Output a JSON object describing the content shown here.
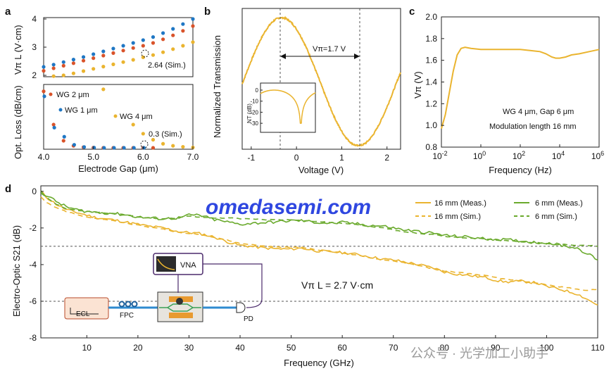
{
  "watermark": "omedasemi.com",
  "watermark2": "公众号 · 光学加工小助手",
  "colors": {
    "blue": "#1f77c4",
    "red": "#d9532a",
    "gold": "#eab42f",
    "green": "#6aaa2d",
    "vna": "#4b2a6b"
  },
  "panels": {
    "a": {
      "label": "a",
      "xlabel": "Electrode Gap (μm)",
      "ylabel_top": "Vπ L (V·cm)",
      "ylabel_bottom": "Opt. Loss (dB/cm)"
    },
    "b": {
      "label": "b",
      "xlabel": "Voltage (V)",
      "ylabel": "Normalized Transmission",
      "inset_ylabel": "NT (dB)"
    },
    "c": {
      "label": "c",
      "xlabel": "Frequency (Hz)",
      "ylabel": "Vπ (V)",
      "note1": "WG 4 μm, Gap 6 μm",
      "note2": "Modulation length 16 mm"
    },
    "d": {
      "label": "d",
      "xlabel": "Frequency (GHz)",
      "ylabel": "Electro-Optic S21 (dB)",
      "vpi_l": "Vπ L = 2.7 V·cm"
    }
  },
  "chart_data": [
    {
      "panel": "a-top",
      "type": "scatter",
      "ylim": [
        2,
        4
      ],
      "xlim": [
        4,
        7
      ],
      "yticks": [
        "2",
        "3",
        "4"
      ],
      "xticks": [
        "4.0",
        "5.0",
        "6.0",
        "7.0"
      ],
      "x": [
        4.0,
        4.2,
        4.4,
        4.6,
        4.8,
        5.0,
        5.2,
        5.4,
        5.6,
        5.8,
        6.0,
        6.2,
        6.4,
        6.6,
        6.8,
        7.0
      ],
      "series": [
        {
          "label": "WG 1 μm",
          "values": [
            2.3,
            2.38,
            2.47,
            2.56,
            2.65,
            2.75,
            2.85,
            2.95,
            3.05,
            3.15,
            3.25,
            3.36,
            3.5,
            3.65,
            3.82,
            4.0
          ]
        },
        {
          "label": "WG 2 μm",
          "values": [
            2.16,
            2.25,
            2.34,
            2.43,
            2.52,
            2.61,
            2.7,
            2.79,
            2.88,
            2.97,
            3.05,
            3.15,
            3.28,
            3.42,
            3.58,
            3.75
          ]
        },
        {
          "label": "WG 4 μm",
          "values": [
            1.95,
            1.97,
            2.0,
            2.07,
            2.15,
            2.23,
            2.31,
            2.39,
            2.47,
            2.55,
            2.64,
            2.72,
            2.82,
            2.93,
            3.05,
            3.18
          ]
        }
      ],
      "annotation": "2.64 (Sim.)"
    },
    {
      "panel": "a-bottom",
      "type": "scatter",
      "ylim": [
        0,
        3
      ],
      "xlim": [
        4,
        7
      ],
      "xticks": [
        "4.0",
        "5.0",
        "6.0",
        "7.0"
      ],
      "series": [
        {
          "label": "WG 2 μm",
          "points": [
            [
              4.0,
              2.8
            ],
            [
              4.2,
              1.15
            ],
            [
              4.4,
              0.35
            ],
            [
              4.6,
              0.1
            ],
            [
              4.8,
              0.03
            ],
            [
              5.0,
              0.01
            ],
            [
              5.2,
              0.0
            ],
            [
              5.4,
              0.0
            ],
            [
              5.6,
              0.0
            ],
            [
              5.8,
              0.0
            ],
            [
              6.0,
              0.0
            ],
            [
              6.2,
              0.0
            ]
          ]
        },
        {
          "label": "WG 1 μm",
          "points": [
            [
              4.0,
              2.55
            ],
            [
              4.2,
              1.0
            ],
            [
              4.4,
              0.55
            ],
            [
              4.6,
              0.15
            ],
            [
              4.8,
              0.04
            ],
            [
              5.0,
              0.01
            ],
            [
              5.2,
              0.0
            ],
            [
              5.4,
              0.0
            ],
            [
              5.6,
              0.0
            ],
            [
              5.8,
              0.0
            ],
            [
              6.0,
              0.0
            ]
          ]
        },
        {
          "label": "WG 4 μm",
          "points": [
            [
              5.2,
              2.9
            ],
            [
              5.8,
              1.15
            ],
            [
              6.0,
              0.7
            ],
            [
              6.2,
              0.4
            ],
            [
              6.4,
              0.2
            ],
            [
              6.6,
              0.1
            ],
            [
              6.8,
              0.05
            ],
            [
              7.0,
              0.02
            ]
          ]
        }
      ],
      "annotation": "0.3 (Sim.)"
    },
    {
      "panel": "b",
      "type": "line",
      "xlim": [
        -1.2,
        2.3
      ],
      "ylim": [
        0,
        1
      ],
      "xticks": [
        "-1",
        "0",
        "1",
        "2"
      ],
      "annotation": "Vπ=1.7 V",
      "inset": {
        "ylim": [
          -35,
          0
        ],
        "yticks": [
          "0",
          "-10",
          "-20",
          "-30"
        ]
      }
    },
    {
      "panel": "c",
      "type": "line",
      "ylim": [
        0.8,
        2.0
      ],
      "yticks": [
        "0.8",
        "1.0",
        "1.2",
        "1.4",
        "1.6",
        "1.8",
        "2.0"
      ],
      "xticks": [
        "10-2",
        "100",
        "102",
        "104",
        "106"
      ],
      "x_log10": [
        -2,
        -1.8,
        -1.6,
        -1.4,
        -1.2,
        -1.0,
        -0.8,
        -0.5,
        0,
        0.5,
        1,
        1.5,
        2,
        2.5,
        3,
        3.3,
        3.6,
        3.8,
        4.0,
        4.3,
        4.6,
        5.0,
        5.5,
        6.0
      ],
      "values": [
        0.97,
        1.1,
        1.3,
        1.5,
        1.65,
        1.71,
        1.72,
        1.71,
        1.7,
        1.7,
        1.7,
        1.7,
        1.7,
        1.69,
        1.68,
        1.66,
        1.63,
        1.62,
        1.62,
        1.63,
        1.65,
        1.66,
        1.68,
        1.7
      ]
    },
    {
      "panel": "d",
      "type": "line",
      "xlim": [
        1,
        110
      ],
      "ylim": [
        -8,
        0.3
      ],
      "xticks": [
        "10",
        "20",
        "30",
        "40",
        "50",
        "60",
        "70",
        "80",
        "90",
        "100",
        "110"
      ],
      "yticks": [
        "0",
        "-2",
        "-4",
        "-6",
        "-8"
      ],
      "x": [
        1,
        2,
        4,
        6,
        8,
        10,
        12,
        15,
        18,
        20,
        22,
        25,
        28,
        30,
        32,
        35,
        38,
        40,
        42,
        45,
        48,
        50,
        52,
        55,
        58,
        60,
        62,
        65,
        68,
        70,
        72,
        75,
        78,
        80,
        82,
        85,
        88,
        90,
        92,
        95,
        98,
        100,
        102,
        104,
        106,
        108,
        110
      ],
      "series": [
        {
          "name": "16 mm (Meas.)",
          "values": [
            0,
            -0.3,
            -0.7,
            -1.0,
            -1.15,
            -1.3,
            -1.45,
            -1.55,
            -1.7,
            -1.8,
            -1.9,
            -2.0,
            -2.2,
            -2.25,
            -2.3,
            -2.5,
            -2.8,
            -2.95,
            -3.0,
            -3.1,
            -3.15,
            -3.15,
            -3.1,
            -3.25,
            -3.3,
            -3.35,
            -3.4,
            -3.55,
            -3.7,
            -3.75,
            -3.85,
            -4.0,
            -4.2,
            -4.4,
            -4.5,
            -4.6,
            -4.7,
            -4.85,
            -4.95,
            -4.9,
            -5.0,
            -5.2,
            -5.3,
            -5.45,
            -5.6,
            -5.9,
            -6.2
          ]
        },
        {
          "name": "16 mm (Sim.)",
          "values": [
            -0.3,
            -0.6,
            -0.9,
            -1.1,
            -1.25,
            -1.4,
            -1.5,
            -1.6,
            -1.75,
            -1.85,
            -1.95,
            -2.05,
            -2.25,
            -2.3,
            -2.35,
            -2.5,
            -2.7,
            -2.85,
            -2.9,
            -3.0,
            -3.05,
            -3.05,
            -3.05,
            -3.2,
            -3.3,
            -3.35,
            -3.45,
            -3.6,
            -3.75,
            -3.8,
            -3.9,
            -4.05,
            -4.25,
            -4.35,
            -4.4,
            -4.5,
            -4.6,
            -4.7,
            -4.8,
            -4.9,
            -5.0,
            -5.1,
            -5.2,
            -5.25,
            -5.35,
            -5.4,
            -5.35
          ]
        },
        {
          "name": "6 mm (Meas.)",
          "values": [
            0,
            -0.2,
            -0.55,
            -0.85,
            -1.0,
            -1.1,
            -1.15,
            -1.2,
            -1.3,
            -1.4,
            -1.45,
            -1.5,
            -1.45,
            -1.3,
            -1.3,
            -1.55,
            -1.7,
            -1.8,
            -1.75,
            -1.7,
            -1.65,
            -1.6,
            -1.6,
            -1.7,
            -1.75,
            -1.7,
            -1.75,
            -1.85,
            -1.9,
            -2.0,
            -2.1,
            -2.2,
            -2.3,
            -2.4,
            -2.45,
            -2.5,
            -2.6,
            -2.6,
            -2.65,
            -2.7,
            -2.8,
            -2.8,
            -2.9,
            -3.0,
            -3.1,
            -3.4,
            -3.75
          ]
        },
        {
          "name": "6 mm (Sim.)",
          "values": [
            -0.1,
            -0.3,
            -0.7,
            -0.95,
            -1.05,
            -1.1,
            -1.15,
            -1.2,
            -1.3,
            -1.4,
            -1.45,
            -1.5,
            -1.45,
            -1.35,
            -1.4,
            -1.45,
            -1.45,
            -1.5,
            -1.5,
            -1.55,
            -1.55,
            -1.55,
            -1.6,
            -1.65,
            -1.7,
            -1.75,
            -1.8,
            -1.9,
            -2.0,
            -2.1,
            -2.2,
            -2.3,
            -2.35,
            -2.45,
            -2.5,
            -2.55,
            -2.6,
            -2.65,
            -2.7,
            -2.75,
            -2.8,
            -2.85,
            -2.9,
            -2.9,
            -2.95,
            -2.95,
            -3.0
          ]
        }
      ],
      "reference_lines_db": [
        -3,
        -6
      ],
      "setup_labels": {
        "ecl": "ECL",
        "fpc": "FPC",
        "vna": "VNA",
        "pd": "PD"
      }
    }
  ]
}
